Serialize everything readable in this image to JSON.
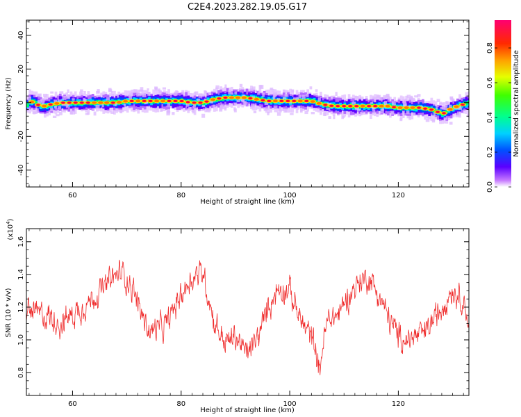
{
  "title": "C2E4.2023.282.19.05.G17",
  "colors": {
    "snr_line": "#ef2b2b",
    "axis": "#000000",
    "background": "#ffffff"
  },
  "chart_data": [
    {
      "type": "heatmap",
      "name": "spectrogram",
      "xlabel": "Height of straight line (km)",
      "ylabel": "Frequency (Hz)",
      "xlim": [
        51.5,
        133
      ],
      "ylim": [
        -50,
        49
      ],
      "x_ticks": [
        60,
        80,
        100,
        120
      ],
      "x_tick_labels": [
        "60",
        "80",
        "100",
        "120"
      ],
      "y_ticks": [
        40,
        20,
        0,
        -20,
        -40
      ],
      "y_tick_labels": [
        "40",
        "20",
        "0",
        "-20",
        "-40"
      ],
      "colormap": "gist_rainbow_r",
      "ridge_center_hz": {
        "x": [
          51.5,
          52,
          53,
          54,
          55,
          56,
          58,
          60,
          62,
          64,
          66,
          68,
          70,
          72,
          74,
          76,
          78,
          80,
          82,
          84,
          86,
          88,
          90,
          92,
          94,
          96,
          98,
          100,
          102,
          104,
          106,
          108,
          110,
          112,
          114,
          116,
          118,
          120,
          122,
          124,
          126,
          127,
          128,
          130,
          132,
          133
        ],
        "y": [
          -1,
          1,
          0,
          -2,
          -2,
          -1,
          0,
          0,
          0,
          0,
          0,
          0,
          1,
          1,
          1,
          1,
          1,
          1,
          0,
          0,
          2,
          3,
          3,
          3,
          2,
          1,
          1,
          1,
          1,
          1,
          -1,
          -2,
          -2,
          -2,
          -2,
          -2,
          -2,
          -3,
          -3,
          -3,
          -4,
          -5,
          -7,
          -3,
          -1,
          0
        ]
      }
    },
    {
      "type": "line",
      "name": "snr",
      "xlabel": "Height of straight line (km)",
      "ylabel": "SNR (10 * v/v)",
      "scale_label": "(x10",
      "scale_exponent": "4",
      "scale_close": ")",
      "xlim": [
        51.5,
        133
      ],
      "ylim": [
        0.66,
        1.68
      ],
      "x_ticks": [
        60,
        80,
        100,
        120
      ],
      "x_tick_labels": [
        "60",
        "80",
        "100",
        "120"
      ],
      "y_ticks": [
        0.8,
        1.0,
        1.2,
        1.4,
        1.6
      ],
      "y_tick_labels": [
        "0.8",
        "1.0",
        "1.2",
        "1.4",
        "1.6"
      ],
      "trend": {
        "x": [
          51.5,
          55,
          58,
          61,
          64,
          67,
          69,
          71,
          74,
          77,
          80,
          82,
          84,
          86,
          88,
          90,
          92,
          94,
          96,
          98,
          100,
          102,
          104,
          105,
          105.5,
          106,
          107,
          109,
          111,
          113,
          114.5,
          116,
          118,
          120,
          122,
          125,
          128,
          129.5,
          131,
          132.5,
          133
        ],
        "y": [
          1.18,
          1.15,
          1.1,
          1.18,
          1.26,
          1.36,
          1.42,
          1.32,
          1.05,
          1.08,
          1.28,
          1.38,
          1.42,
          1.12,
          0.98,
          1.02,
          0.92,
          1.0,
          1.2,
          1.32,
          1.3,
          1.12,
          1.02,
          0.92,
          0.78,
          0.95,
          1.12,
          1.16,
          1.28,
          1.36,
          1.38,
          1.3,
          1.15,
          1.02,
          1.0,
          1.05,
          1.2,
          1.3,
          1.28,
          1.2,
          1.05
        ]
      },
      "noise_amplitude": 0.14,
      "x_step": 0.08
    },
    {
      "type": "colorbar",
      "name": "colorbar",
      "label": "Normalized spectral amplitude",
      "range": [
        0,
        0.96
      ],
      "ticks": [
        0.0,
        0.2,
        0.4,
        0.6,
        0.8
      ],
      "tick_labels": [
        "0.0",
        "0.2",
        "0.4",
        "0.6",
        "0.8"
      ]
    }
  ]
}
